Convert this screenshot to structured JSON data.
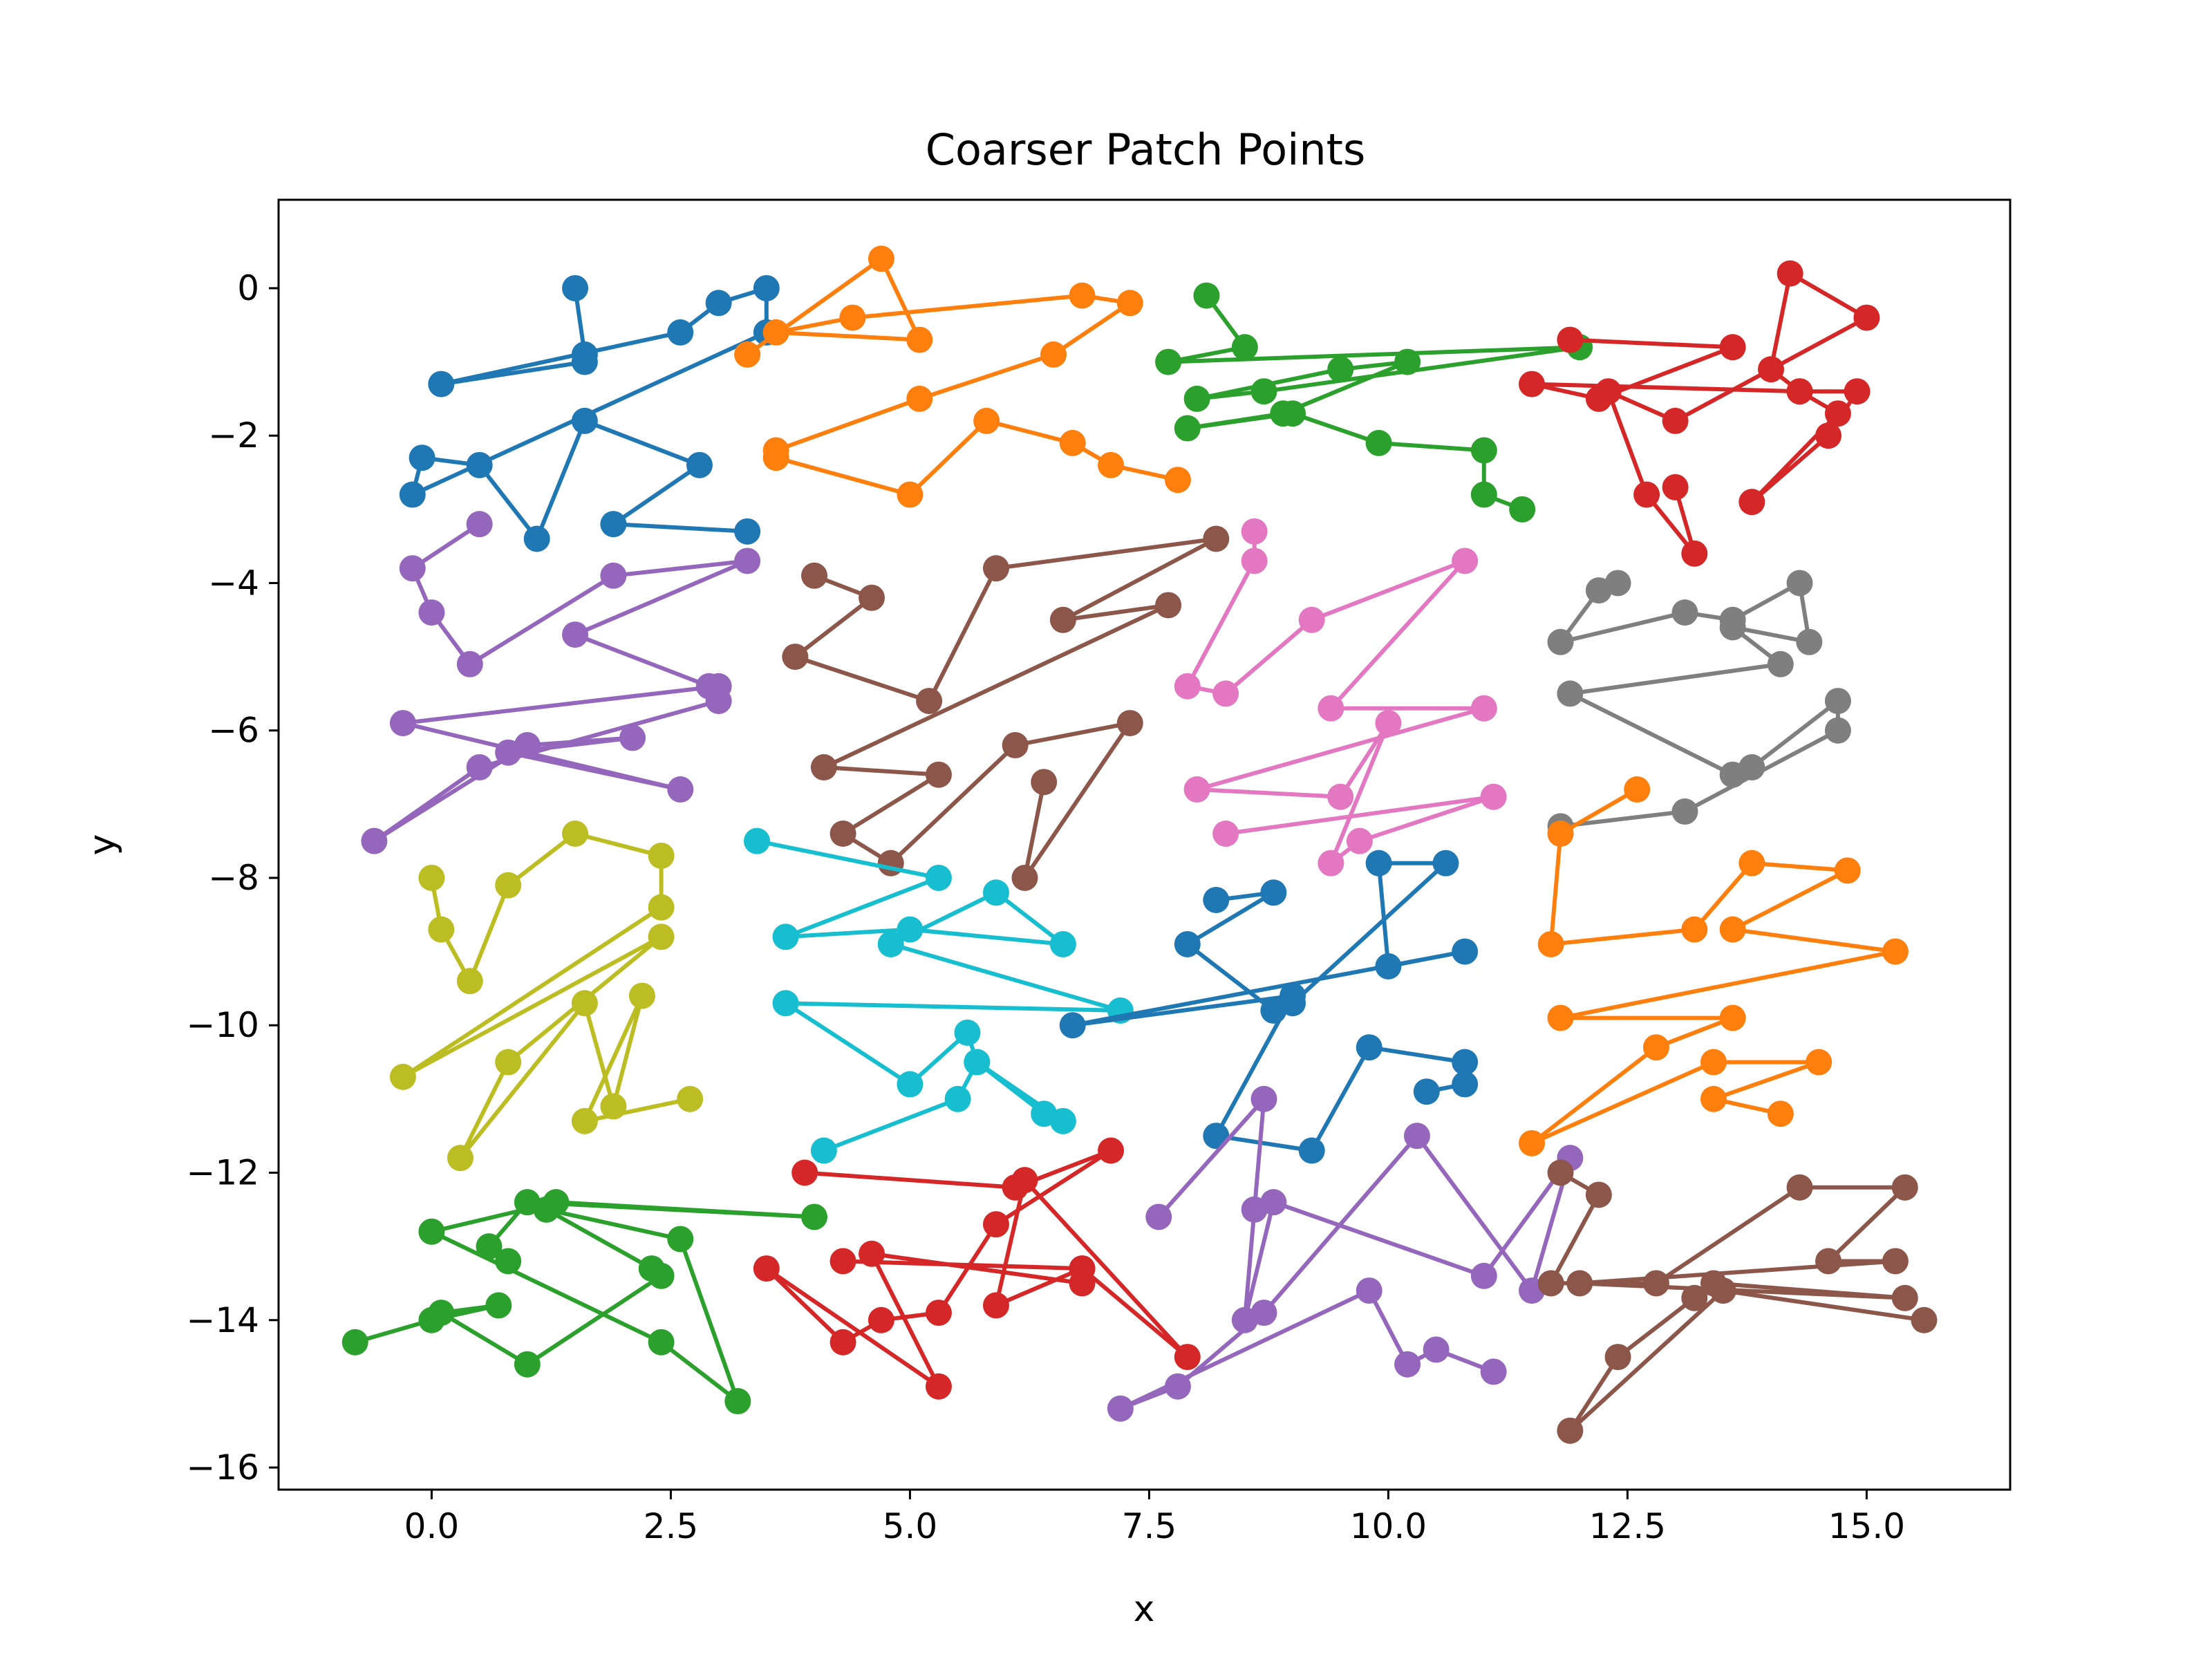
{
  "chart_data": {
    "type": "line",
    "title": "Coarser Patch Points",
    "xlabel": "x",
    "ylabel": "y",
    "xlim": [
      -1.6,
      16.5
    ],
    "ylim": [
      -16.3,
      1.2
    ],
    "xticks": [
      0.0,
      2.5,
      5.0,
      7.5,
      10.0,
      12.5,
      15.0
    ],
    "xtick_labels": [
      "0.0",
      "2.5",
      "5.0",
      "7.5",
      "10.0",
      "12.5",
      "15.0"
    ],
    "yticks": [
      0,
      -2,
      -4,
      -6,
      -8,
      -10,
      -12,
      -14,
      -16
    ],
    "ytick_labels": [
      "0",
      "−2",
      "−4",
      "−6",
      "−8",
      "−10",
      "−12",
      "−14",
      "−16"
    ],
    "grid": false,
    "markers": true,
    "series": [
      {
        "color": "#1f77b4",
        "points": [
          [
            1.5,
            0.0
          ],
          [
            1.6,
            -0.9
          ],
          [
            1.6,
            -1.0
          ],
          [
            0.1,
            -1.3
          ],
          [
            2.6,
            -0.6
          ],
          [
            3.0,
            -0.2
          ],
          [
            3.5,
            0.0
          ],
          [
            3.5,
            -0.6
          ],
          [
            -0.2,
            -2.8
          ],
          [
            -0.1,
            -2.3
          ],
          [
            0.5,
            -2.4
          ],
          [
            1.1,
            -3.4
          ],
          [
            1.6,
            -1.8
          ],
          [
            2.8,
            -2.4
          ],
          [
            1.9,
            -3.2
          ],
          [
            3.3,
            -3.3
          ]
        ]
      },
      {
        "color": "#ff7f0e",
        "points": [
          [
            3.3,
            -0.9
          ],
          [
            4.7,
            0.4
          ],
          [
            5.1,
            -0.7
          ],
          [
            3.6,
            -0.6
          ],
          [
            4.4,
            -0.4
          ],
          [
            6.8,
            -0.1
          ],
          [
            7.3,
            -0.2
          ],
          [
            6.5,
            -0.9
          ],
          [
            5.1,
            -1.5
          ],
          [
            3.6,
            -2.2
          ],
          [
            3.6,
            -2.3
          ],
          [
            5.0,
            -2.8
          ],
          [
            5.8,
            -1.8
          ],
          [
            6.7,
            -2.1
          ],
          [
            7.1,
            -2.4
          ],
          [
            7.8,
            -2.6
          ]
        ]
      },
      {
        "color": "#2ca02c",
        "points": [
          [
            8.1,
            -0.1
          ],
          [
            8.5,
            -0.8
          ],
          [
            7.7,
            -1.0
          ],
          [
            12.0,
            -0.8
          ],
          [
            8.7,
            -1.4
          ],
          [
            8.0,
            -1.5
          ],
          [
            9.5,
            -1.1
          ],
          [
            10.2,
            -1.0
          ],
          [
            8.9,
            -1.7
          ],
          [
            7.9,
            -1.9
          ],
          [
            9.0,
            -1.7
          ],
          [
            9.9,
            -2.1
          ],
          [
            11.0,
            -2.2
          ],
          [
            11.0,
            -2.8
          ],
          [
            11.4,
            -3.0
          ]
        ]
      },
      {
        "color": "#d62728",
        "points": [
          [
            11.9,
            -0.7
          ],
          [
            13.6,
            -0.8
          ],
          [
            12.2,
            -1.5
          ],
          [
            11.5,
            -1.3
          ],
          [
            14.3,
            -1.4
          ],
          [
            14.9,
            -1.4
          ],
          [
            14.6,
            -2.0
          ],
          [
            13.8,
            -2.9
          ],
          [
            14.7,
            -1.7
          ],
          [
            14.3,
            -1.4
          ],
          [
            14.0,
            -1.1
          ],
          [
            14.2,
            0.2
          ],
          [
            15.0,
            -0.4
          ],
          [
            13.0,
            -1.8
          ],
          [
            12.3,
            -1.4
          ],
          [
            12.7,
            -2.8
          ],
          [
            13.2,
            -3.6
          ],
          [
            13.0,
            -2.7
          ]
        ]
      },
      {
        "color": "#9467bd",
        "points": [
          [
            0.5,
            -3.2
          ],
          [
            -0.2,
            -3.8
          ],
          [
            0.0,
            -4.4
          ],
          [
            0.4,
            -5.1
          ],
          [
            1.9,
            -3.9
          ],
          [
            3.3,
            -3.7
          ],
          [
            1.5,
            -4.7
          ],
          [
            2.9,
            -5.4
          ],
          [
            3.0,
            -5.6
          ],
          [
            0.5,
            -6.5
          ],
          [
            -0.6,
            -7.5
          ],
          [
            1.0,
            -6.2
          ],
          [
            2.1,
            -6.1
          ],
          [
            0.8,
            -6.3
          ],
          [
            2.6,
            -6.8
          ],
          [
            -0.3,
            -5.9
          ],
          [
            3.0,
            -5.4
          ]
        ]
      },
      {
        "color": "#8c564b",
        "points": [
          [
            4.0,
            -3.9
          ],
          [
            4.6,
            -4.2
          ],
          [
            3.8,
            -5.0
          ],
          [
            5.2,
            -5.6
          ],
          [
            5.9,
            -3.8
          ],
          [
            8.2,
            -3.4
          ],
          [
            6.6,
            -4.5
          ],
          [
            7.7,
            -4.3
          ],
          [
            4.1,
            -6.5
          ],
          [
            5.3,
            -6.6
          ],
          [
            4.3,
            -7.4
          ],
          [
            4.8,
            -7.8
          ],
          [
            6.1,
            -6.2
          ],
          [
            7.3,
            -5.9
          ],
          [
            6.2,
            -8.0
          ],
          [
            6.4,
            -6.7
          ]
        ]
      },
      {
        "color": "#e377c2",
        "points": [
          [
            8.6,
            -3.3
          ],
          [
            8.6,
            -3.7
          ],
          [
            7.9,
            -5.4
          ],
          [
            8.3,
            -5.5
          ],
          [
            9.2,
            -4.5
          ],
          [
            10.8,
            -3.7
          ],
          [
            9.4,
            -5.7
          ],
          [
            11.0,
            -5.7
          ],
          [
            8.0,
            -6.8
          ],
          [
            9.5,
            -6.9
          ],
          [
            10.0,
            -5.9
          ],
          [
            9.4,
            -7.8
          ],
          [
            9.7,
            -7.5
          ],
          [
            11.1,
            -6.9
          ],
          [
            8.3,
            -7.4
          ]
        ]
      },
      {
        "color": "#7f7f7f",
        "points": [
          [
            12.4,
            -4.0
          ],
          [
            12.2,
            -4.1
          ],
          [
            11.8,
            -4.8
          ],
          [
            13.1,
            -4.4
          ],
          [
            13.6,
            -4.5
          ],
          [
            14.3,
            -4.0
          ],
          [
            14.4,
            -4.8
          ],
          [
            13.6,
            -4.6
          ],
          [
            14.1,
            -5.1
          ],
          [
            11.9,
            -5.5
          ],
          [
            13.6,
            -6.6
          ],
          [
            13.8,
            -6.5
          ],
          [
            14.7,
            -5.6
          ],
          [
            14.7,
            -6.0
          ],
          [
            13.1,
            -7.1
          ],
          [
            11.8,
            -7.3
          ]
        ]
      },
      {
        "color": "#bcbd22",
        "points": [
          [
            0.0,
            -8.0
          ],
          [
            0.1,
            -8.7
          ],
          [
            0.4,
            -9.4
          ],
          [
            0.8,
            -8.1
          ],
          [
            1.5,
            -7.4
          ],
          [
            2.4,
            -7.7
          ],
          [
            2.4,
            -8.4
          ],
          [
            -0.3,
            -10.7
          ],
          [
            2.4,
            -8.8
          ],
          [
            0.8,
            -10.5
          ],
          [
            0.3,
            -11.8
          ],
          [
            1.6,
            -9.7
          ],
          [
            1.9,
            -11.1
          ],
          [
            2.2,
            -9.6
          ],
          [
            1.6,
            -11.3
          ],
          [
            2.7,
            -11.0
          ]
        ]
      },
      {
        "color": "#17becf",
        "points": [
          [
            3.4,
            -7.5
          ],
          [
            5.3,
            -8.0
          ],
          [
            3.7,
            -8.8
          ],
          [
            5.0,
            -8.7
          ],
          [
            6.6,
            -8.9
          ],
          [
            5.9,
            -8.2
          ],
          [
            4.8,
            -8.9
          ],
          [
            7.2,
            -9.8
          ],
          [
            3.7,
            -9.7
          ],
          [
            5.0,
            -10.8
          ],
          [
            5.6,
            -10.1
          ],
          [
            5.7,
            -10.5
          ],
          [
            6.4,
            -11.2
          ],
          [
            6.6,
            -11.3
          ],
          [
            5.7,
            -10.5
          ],
          [
            5.5,
            -11.0
          ],
          [
            4.1,
            -11.7
          ]
        ]
      },
      {
        "color": "#1f77b4",
        "points": [
          [
            8.2,
            -8.3
          ],
          [
            8.8,
            -8.2
          ],
          [
            7.9,
            -8.9
          ],
          [
            8.8,
            -9.8
          ],
          [
            9.0,
            -9.7
          ],
          [
            10.6,
            -7.8
          ],
          [
            9.9,
            -7.8
          ],
          [
            10.0,
            -9.2
          ],
          [
            10.8,
            -9.0
          ],
          [
            6.7,
            -10.0
          ],
          [
            9.0,
            -9.6
          ],
          [
            8.2,
            -11.5
          ],
          [
            9.2,
            -11.7
          ],
          [
            9.8,
            -10.3
          ],
          [
            10.8,
            -10.5
          ],
          [
            10.8,
            -10.8
          ],
          [
            10.4,
            -10.9
          ]
        ]
      },
      {
        "color": "#ff7f0e",
        "points": [
          [
            12.6,
            -6.8
          ],
          [
            11.8,
            -7.4
          ],
          [
            11.7,
            -8.9
          ],
          [
            13.2,
            -8.7
          ],
          [
            13.8,
            -7.8
          ],
          [
            14.8,
            -7.9
          ],
          [
            13.6,
            -8.7
          ],
          [
            15.3,
            -9.0
          ],
          [
            11.8,
            -9.9
          ],
          [
            13.6,
            -9.9
          ],
          [
            12.8,
            -10.3
          ],
          [
            11.5,
            -11.6
          ],
          [
            13.4,
            -10.5
          ],
          [
            14.5,
            -10.5
          ],
          [
            13.4,
            -11.0
          ],
          [
            14.1,
            -11.2
          ]
        ]
      },
      {
        "color": "#2ca02c",
        "points": [
          [
            -0.8,
            -14.3
          ],
          [
            0.0,
            -14.0
          ],
          [
            0.7,
            -13.8
          ],
          [
            0.1,
            -13.9
          ],
          [
            1.0,
            -14.6
          ],
          [
            2.4,
            -13.4
          ],
          [
            2.3,
            -13.3
          ],
          [
            1.2,
            -12.5
          ],
          [
            2.6,
            -12.9
          ],
          [
            3.2,
            -15.1
          ],
          [
            2.4,
            -14.3
          ],
          [
            0.0,
            -12.8
          ],
          [
            1.3,
            -12.4
          ],
          [
            4.0,
            -12.6
          ],
          [
            1.0,
            -12.4
          ],
          [
            0.6,
            -13.0
          ],
          [
            0.8,
            -13.2
          ]
        ]
      },
      {
        "color": "#d62728",
        "points": [
          [
            3.9,
            -12.0
          ],
          [
            6.1,
            -12.2
          ],
          [
            7.1,
            -11.7
          ],
          [
            5.9,
            -12.7
          ],
          [
            5.3,
            -13.9
          ],
          [
            4.7,
            -14.0
          ],
          [
            4.3,
            -14.3
          ],
          [
            3.5,
            -13.3
          ],
          [
            5.3,
            -14.9
          ],
          [
            4.6,
            -13.1
          ],
          [
            6.8,
            -13.5
          ],
          [
            6.8,
            -13.3
          ],
          [
            5.9,
            -13.8
          ],
          [
            6.2,
            -12.1
          ],
          [
            7.9,
            -14.5
          ],
          [
            6.8,
            -13.3
          ],
          [
            4.3,
            -13.2
          ]
        ]
      },
      {
        "color": "#9467bd",
        "points": [
          [
            7.6,
            -12.6
          ],
          [
            8.7,
            -11.0
          ],
          [
            8.6,
            -12.5
          ],
          [
            8.5,
            -14.0
          ],
          [
            8.8,
            -12.4
          ],
          [
            11.0,
            -13.4
          ],
          [
            11.9,
            -11.8
          ],
          [
            11.5,
            -13.6
          ],
          [
            10.3,
            -11.5
          ],
          [
            8.7,
            -13.9
          ],
          [
            7.8,
            -14.9
          ],
          [
            7.2,
            -15.2
          ],
          [
            9.8,
            -13.6
          ],
          [
            10.2,
            -14.6
          ],
          [
            10.5,
            -14.4
          ],
          [
            11.1,
            -14.7
          ]
        ]
      },
      {
        "color": "#8c564b",
        "points": [
          [
            11.8,
            -12.0
          ],
          [
            12.2,
            -12.3
          ],
          [
            11.7,
            -13.5
          ],
          [
            12.8,
            -13.5
          ],
          [
            14.3,
            -12.2
          ],
          [
            15.4,
            -12.2
          ],
          [
            14.6,
            -13.2
          ],
          [
            15.3,
            -13.2
          ],
          [
            12.0,
            -13.5
          ],
          [
            15.4,
            -13.7
          ],
          [
            13.4,
            -13.5
          ],
          [
            13.2,
            -13.7
          ],
          [
            12.4,
            -14.5
          ],
          [
            11.9,
            -15.5
          ],
          [
            13.5,
            -13.6
          ],
          [
            15.6,
            -14.0
          ]
        ]
      }
    ]
  }
}
